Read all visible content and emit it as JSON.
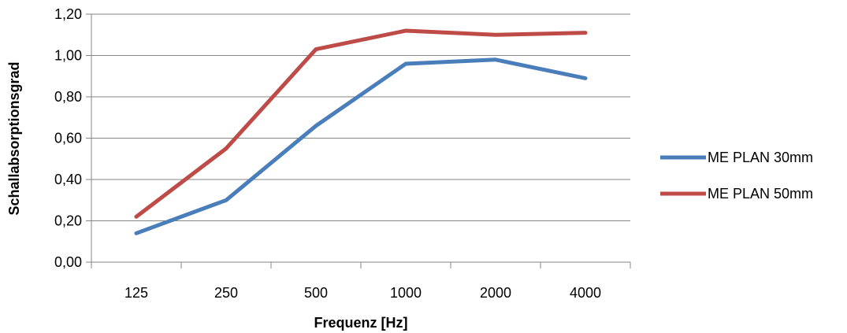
{
  "chart_data": {
    "type": "line",
    "categories": [
      "125",
      "250",
      "500",
      "1000",
      "2000",
      "4000"
    ],
    "series": [
      {
        "name": "ME PLAN 30mm",
        "color": "#4a7ebb",
        "values": [
          0.14,
          0.3,
          0.66,
          0.96,
          0.98,
          0.89
        ]
      },
      {
        "name": "ME PLAN 50mm",
        "color": "#be4b48",
        "values": [
          0.22,
          0.55,
          1.03,
          1.12,
          1.1,
          1.11
        ]
      }
    ],
    "xlabel": "Frequenz [Hz]",
    "ylabel": "Schallabsorptionsgrad",
    "ylim": [
      0,
      1.2
    ],
    "yticks": [
      "0,00",
      "0,20",
      "0,40",
      "0,60",
      "0,80",
      "1,00",
      "1,20"
    ],
    "grid": true,
    "legend_position": "right",
    "gridline_color": "#868686"
  }
}
